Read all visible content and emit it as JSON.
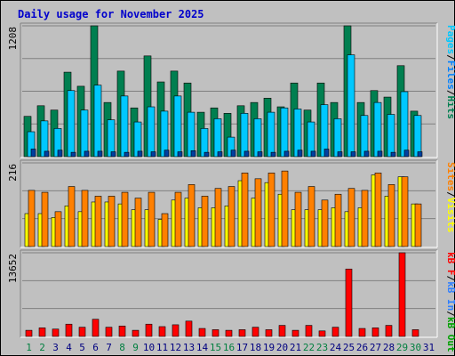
{
  "title": "Daily usage for November 2025",
  "colors": {
    "background": "#c0c0c0",
    "title": "#0000cc",
    "hits": "#007f50",
    "files": "#00c8ff",
    "pages": "#00c8ff",
    "visits": "#ffff00",
    "sites": "#ff8000",
    "kbin": "#2f7fff",
    "kbout": "#00a000",
    "kbf": "#ff0000",
    "weekend_label": "#007f3f",
    "weekday_label": "#0000ff"
  },
  "right_labels": {
    "top": [
      {
        "text": "Pages",
        "color": "#00c8ff"
      },
      {
        "text": "/",
        "color": "#000000"
      },
      {
        "text": "Files",
        "color": "#0080ff"
      },
      {
        "text": "/",
        "color": "#000000"
      },
      {
        "text": "Hits",
        "color": "#007f50"
      }
    ],
    "middle": [
      {
        "text": "Sites",
        "color": "#ff8000"
      },
      {
        "text": "/",
        "color": "#000000"
      },
      {
        "text": "Visits",
        "color": "#ffff00"
      }
    ],
    "bottom": [
      {
        "text": "kB F",
        "color": "#ff0000"
      },
      {
        "text": "/",
        "color": "#000000"
      },
      {
        "text": "kB In",
        "color": "#2f7fff"
      },
      {
        "text": "/",
        "color": "#000000"
      },
      {
        "text": "kB Out",
        "color": "#00a000"
      }
    ]
  },
  "chart_data": [
    {
      "type": "bar",
      "name": "hits-files-pages",
      "categories": [
        "1",
        "2",
        "3",
        "4",
        "5",
        "6",
        "7",
        "8",
        "9",
        "10",
        "11",
        "12",
        "13",
        "14",
        "15",
        "16",
        "17",
        "18",
        "19",
        "20",
        "21",
        "22",
        "23",
        "24",
        "25",
        "26",
        "27",
        "28",
        "29",
        "30"
      ],
      "ymax_label": "1208",
      "ylim": [
        0,
        1208
      ],
      "series": [
        {
          "name": "Hits",
          "values": [
            372,
            470,
            430,
            780,
            650,
            1208,
            500,
            790,
            450,
            930,
            690,
            790,
            680,
            410,
            450,
            400,
            470,
            500,
            540,
            460,
            680,
            430,
            680,
            500,
            1208,
            500,
            610,
            550,
            840,
            420
          ]
        },
        {
          "name": "Files",
          "values": [
            230,
            330,
            260,
            610,
            430,
            660,
            340,
            560,
            320,
            460,
            420,
            560,
            410,
            260,
            350,
            180,
            400,
            350,
            410,
            450,
            440,
            320,
            480,
            350,
            940,
            380,
            500,
            390,
            600,
            380
          ]
        },
        {
          "name": "Pages",
          "values": [
            70,
            50,
            60,
            40,
            50,
            50,
            45,
            40,
            50,
            45,
            60,
            45,
            55,
            40,
            45,
            60,
            50,
            45,
            40,
            50,
            60,
            50,
            70,
            45,
            45,
            50,
            50,
            40,
            60,
            45
          ]
        }
      ]
    },
    {
      "type": "bar",
      "name": "visits-sites",
      "categories": [
        "1",
        "2",
        "3",
        "4",
        "5",
        "6",
        "7",
        "8",
        "9",
        "10",
        "11",
        "12",
        "13",
        "14",
        "15",
        "16",
        "17",
        "18",
        "19",
        "20",
        "21",
        "22",
        "23",
        "24",
        "25",
        "26",
        "27",
        "28",
        "29",
        "30"
      ],
      "ymax_label": "216",
      "ylim": [
        0,
        216
      ],
      "series": [
        {
          "name": "Visits",
          "values": [
            85,
            85,
            75,
            105,
            90,
            115,
            115,
            110,
            95,
            95,
            70,
            120,
            125,
            100,
            100,
            105,
            170,
            125,
            165,
            135,
            95,
            95,
            95,
            100,
            90,
            100,
            185,
            130,
            180,
            110
          ]
        },
        {
          "name": "Sites",
          "values": [
            145,
            140,
            90,
            155,
            145,
            130,
            130,
            140,
            125,
            140,
            85,
            140,
            160,
            130,
            150,
            155,
            190,
            175,
            190,
            195,
            140,
            155,
            120,
            135,
            150,
            145,
            190,
            160,
            180,
            110
          ]
        }
      ]
    },
    {
      "type": "bar",
      "name": "kbf",
      "categories": [
        "1",
        "2",
        "3",
        "4",
        "5",
        "6",
        "7",
        "8",
        "9",
        "10",
        "11",
        "12",
        "13",
        "14",
        "15",
        "16",
        "17",
        "18",
        "19",
        "20",
        "21",
        "22",
        "23",
        "24",
        "25",
        "26",
        "27",
        "28",
        "29",
        "30"
      ],
      "ymax_label": "13652",
      "ylim": [
        0,
        13652
      ],
      "series": [
        {
          "name": "kB F",
          "values": [
            1000,
            1400,
            1200,
            2000,
            1500,
            2800,
            1500,
            1700,
            1000,
            2000,
            1600,
            1900,
            2500,
            1300,
            1100,
            1000,
            1100,
            1500,
            1100,
            1800,
            1000,
            1800,
            900,
            1500,
            11000,
            1300,
            1400,
            1800,
            13652,
            1100
          ]
        }
      ]
    }
  ],
  "xaxis": {
    "labels": [
      "1",
      "2",
      "3",
      "4",
      "5",
      "6",
      "7",
      "8",
      "9",
      "10",
      "11",
      "12",
      "13",
      "14",
      "15",
      "16",
      "17",
      "18",
      "19",
      "20",
      "21",
      "22",
      "23",
      "24",
      "25",
      "26",
      "27",
      "28",
      "29",
      "30",
      "31"
    ],
    "weekend": [
      "1",
      "2",
      "8",
      "9",
      "15",
      "16",
      "22",
      "23",
      "29",
      "30"
    ]
  }
}
